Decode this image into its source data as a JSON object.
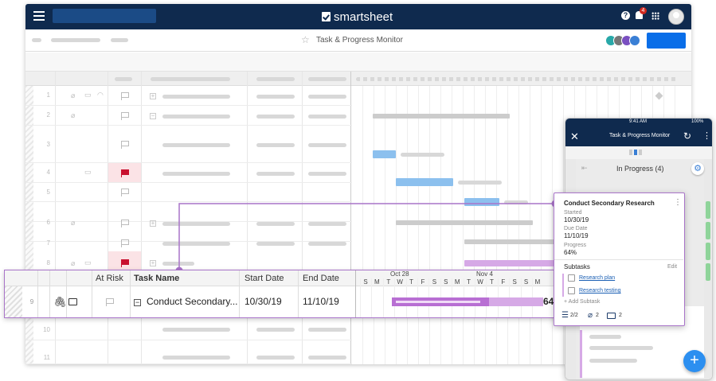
{
  "app": {
    "brand": "smartsheet",
    "sheet_title": "Task & Progress Monitor",
    "notifications": "4"
  },
  "grid": {
    "row_numbers": [
      "1",
      "2",
      "3",
      "4",
      "5",
      "6",
      "7",
      "8",
      "10",
      "11"
    ]
  },
  "zoom_row": {
    "row_number": "9",
    "headers": {
      "at_risk": "At Risk",
      "task_name": "Task Name",
      "start_date": "Start Date",
      "end_date": "End Date"
    },
    "week_labels": [
      "Oct 28",
      "Nov 4"
    ],
    "days": [
      "S",
      "M",
      "T",
      "W",
      "T",
      "F",
      "S",
      "S",
      "M",
      "T",
      "W",
      "T",
      "F",
      "S",
      "S",
      "M"
    ],
    "task_name": "Conduct Secondary...",
    "start_date": "10/30/19",
    "end_date": "11/10/19",
    "progress": "64%",
    "progress_value": 0.64
  },
  "mobile": {
    "status_time": "9:41 AM",
    "battery": "100%",
    "title": "Task & Progress Monitor",
    "column_label": "In Progress (4)",
    "card": {
      "title": "Conduct Secondary Research",
      "started_label": "Started",
      "started": "10/30/19",
      "due_label": "Due Date",
      "due": "11/10/19",
      "progress_label": "Progress",
      "progress": "64%",
      "subtasks_label": "Subtasks",
      "edit_label": "Edit",
      "subtasks": [
        "Research plan",
        "Research testing"
      ],
      "add_subtask": "+ Add Subtask",
      "subtask_count": "2/2",
      "attachments": "2",
      "comments": "2"
    }
  },
  "colors": {
    "nav": "#0f2a4e",
    "accent": "#0a6ee8",
    "highlight": "#a974c9",
    "bar_blue": "#8cc0ee",
    "bar_purple": "#d6a9e6",
    "risk": "#c8102e"
  }
}
